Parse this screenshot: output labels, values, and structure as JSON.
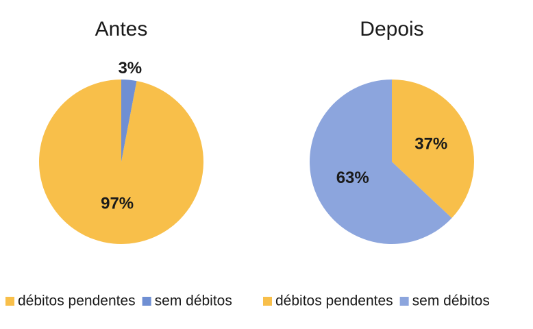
{
  "chart_data": [
    {
      "type": "pie",
      "title": "Antes",
      "categories": [
        "débitos pendentes",
        "sem débitos"
      ],
      "values": [
        97,
        3
      ],
      "value_labels": [
        "97%",
        "3%"
      ],
      "colors": [
        "#f8bf4a",
        "#6f8fd3"
      ],
      "counterclock": true
    },
    {
      "type": "pie",
      "title": "Depois",
      "categories": [
        "débitos pendentes",
        "sem débitos"
      ],
      "values": [
        37,
        63
      ],
      "value_labels": [
        "37%",
        "63%"
      ],
      "colors": [
        "#f8bf4a",
        "#8ca5dd"
      ],
      "counterclock": false
    }
  ]
}
